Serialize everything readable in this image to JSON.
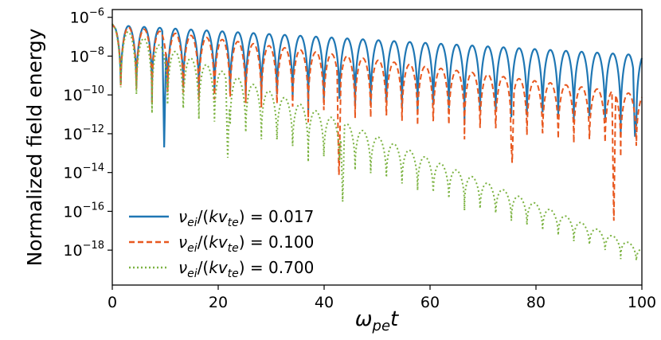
{
  "chart_data": {
    "type": "line",
    "title": "",
    "xlabel": "ω",
    "xlabel_sub": "pe",
    "xlabel_tail": "t",
    "ylabel": "Normalized field energy",
    "xlim": [
      0,
      100
    ],
    "ylim_log10": [
      -19.8,
      -5.6
    ],
    "yscale": "log",
    "x_ticks": [
      "0",
      "20",
      "40",
      "60",
      "80",
      "100"
    ],
    "y_ticks": [
      {
        "exp": -6,
        "base": "10",
        "sup": "−6"
      },
      {
        "exp": -8,
        "base": "10",
        "sup": "−8"
      },
      {
        "exp": -10,
        "base": "10",
        "sup": "−10"
      },
      {
        "exp": -12,
        "base": "10",
        "sup": "−12"
      },
      {
        "exp": -14,
        "base": "10",
        "sup": "−14"
      },
      {
        "exp": -16,
        "base": "10",
        "sup": "−16"
      },
      {
        "exp": -18,
        "base": "10",
        "sup": "−18"
      }
    ],
    "grid": false,
    "legend_position": "bottom-left",
    "series": [
      {
        "name": "ν_ei/(kv_te) = 0.017",
        "legend_main": "ν",
        "legend_sub1": "ei",
        "legend_mid": "/(",
        "legend_k": "kv",
        "legend_sub2": "te",
        "legend_tail": ") = 0.017",
        "color": "#1f77b4",
        "dash": "solid",
        "start_log10": -6.35,
        "peak_log10_at_x0": -6.4,
        "decay_per_unit_x": 0.0155,
        "min_log10_at_x0": -10.2,
        "min_decay_per_unit_x": 0.02,
        "deep_minima_x": [
          9.8,
          98.7
        ],
        "deep_minima_log10": [
          -12.8,
          -12.2
        ]
      },
      {
        "name": "ν_ei/(kv_te) = 0.100",
        "legend_main": "ν",
        "legend_sub1": "ei",
        "legend_mid": "/(",
        "legend_k": "kv",
        "legend_sub2": "te",
        "legend_tail": ") = 0.100",
        "color": "#e8581f",
        "dash": "dashed",
        "start_log10": -6.35,
        "peak_log10_at_x0": -6.4,
        "decay_per_unit_x": 0.036,
        "min_log10_at_x0": -10.3,
        "min_decay_per_unit_x": 0.03,
        "deep_minima_x": [
          42.8,
          75.5,
          94.7
        ],
        "deep_minima_log10": [
          -14.2,
          -13.5,
          -16.6
        ]
      },
      {
        "name": "ν_ei/(kv_te) = 0.700",
        "legend_main": "ν",
        "legend_sub1": "ei",
        "legend_mid": "/(",
        "legend_k": "kv",
        "legend_sub2": "te",
        "legend_tail": ") = 0.700",
        "color": "#7cb342",
        "dash": "dotted",
        "start_log10": -6.35,
        "peak_log10_at_x0": -6.4,
        "decay_per_unit_x": 0.115,
        "min_log10_at_x0": -10.3,
        "min_decay_per_unit_x": 0.085,
        "deep_minima_x": [
          21.8,
          43.5
        ],
        "deep_minima_log10": [
          -13.3,
          -15.5
        ]
      }
    ]
  }
}
